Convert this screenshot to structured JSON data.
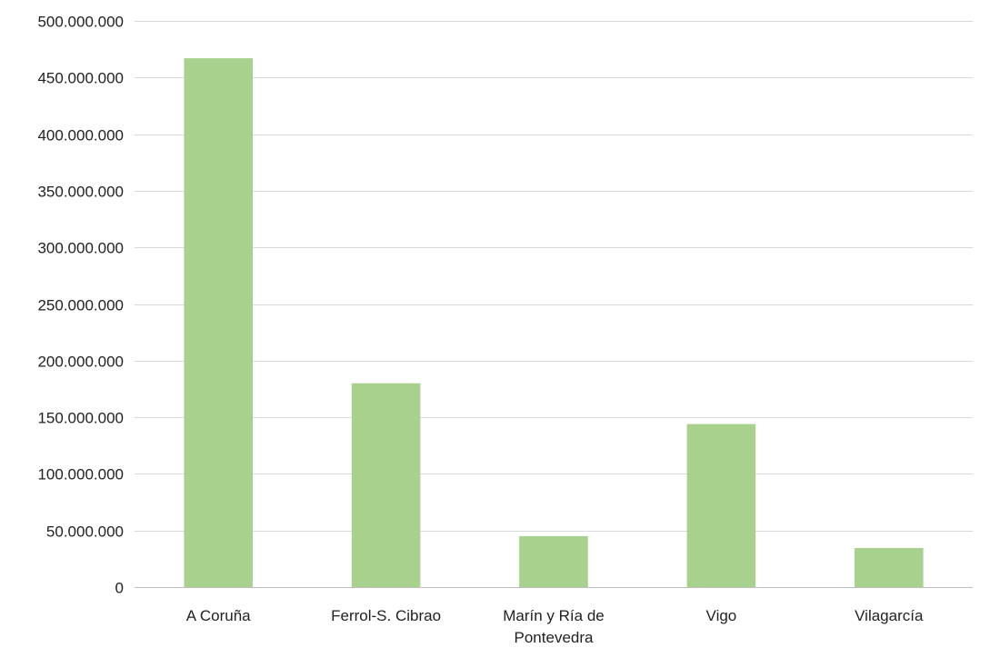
{
  "chart_data": {
    "type": "bar",
    "title": "",
    "xlabel": "",
    "ylabel": "",
    "categories": [
      "A Coruña",
      "Ferrol-S. Cibrao",
      "Marín y Ría de Pontevedra",
      "Vigo",
      "Vilagarcía"
    ],
    "series": [
      {
        "values": [
          467000000,
          180000000,
          45000000,
          144000000,
          34500000
        ]
      }
    ],
    "ylim": [
      0,
      500000000
    ],
    "yticks": [
      0,
      50000000,
      100000000,
      150000000,
      200000000,
      250000000,
      300000000,
      350000000,
      400000000,
      450000000,
      500000000
    ],
    "ytick_labels": [
      "0",
      "50.000.000",
      "100.000.000",
      "150.000.000",
      "200.000.000",
      "250.000.000",
      "300.000.000",
      "350.000.000",
      "400.000.000",
      "450.000.000",
      "500.000.000"
    ],
    "grid": true,
    "legend": "none",
    "bar_color": "#a9d18e"
  }
}
